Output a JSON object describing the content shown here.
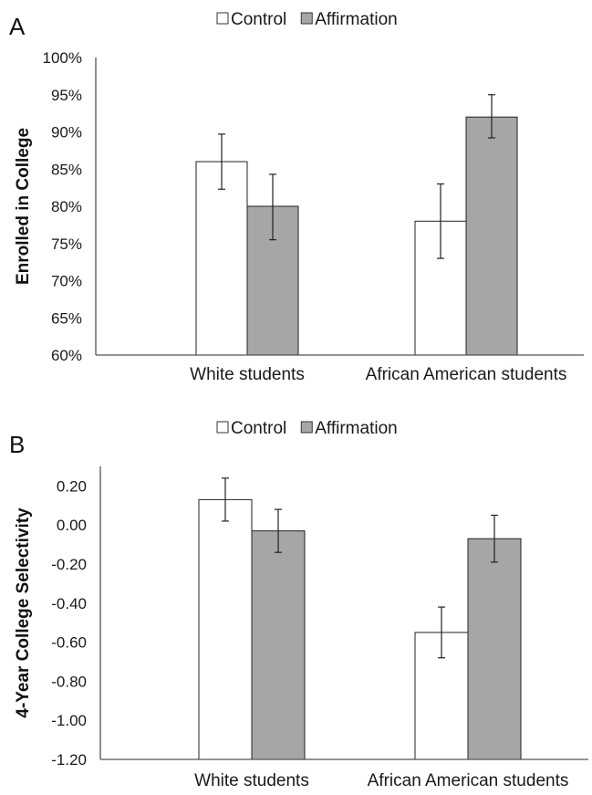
{
  "chart_data": [
    {
      "type": "bar",
      "panel_label": "A",
      "categories": [
        "White students",
        "African American students"
      ],
      "series": [
        {
          "name": "Control",
          "values": [
            86,
            78
          ],
          "error_low": [
            82.3,
            73
          ],
          "error_high": [
            89.7,
            83
          ],
          "color": "#ffffff"
        },
        {
          "name": "Affirmation",
          "values": [
            80,
            92
          ],
          "error_low": [
            75.5,
            89.2
          ],
          "error_high": [
            84.3,
            95
          ],
          "color": "#a6a6a6"
        }
      ],
      "ylabel": "Enrolled in College",
      "ylim": [
        60,
        100
      ],
      "yticks": [
        60,
        65,
        70,
        75,
        80,
        85,
        90,
        95,
        100
      ],
      "ytick_labels": [
        "60%",
        "65%",
        "70%",
        "75%",
        "80%",
        "85%",
        "90%",
        "95%",
        "100%"
      ],
      "legend_position": "top-center",
      "grid": false
    },
    {
      "type": "bar",
      "panel_label": "B",
      "categories": [
        "White students",
        "African American students"
      ],
      "series": [
        {
          "name": "Control",
          "values": [
            0.13,
            -0.55
          ],
          "error_low": [
            0.02,
            -0.68
          ],
          "error_high": [
            0.24,
            -0.42
          ],
          "color": "#ffffff"
        },
        {
          "name": "Affirmation",
          "values": [
            -0.03,
            -0.07
          ],
          "error_low": [
            -0.14,
            -0.19
          ],
          "error_high": [
            0.08,
            0.05
          ],
          "color": "#a6a6a6"
        }
      ],
      "ylabel": "4-Year College Selectivity",
      "ylim": [
        -1.2,
        0.3
      ],
      "yticks": [
        -1.2,
        -1.0,
        -0.8,
        -0.6,
        -0.4,
        -0.2,
        0.0,
        0.2
      ],
      "ytick_labels": [
        "-1.20",
        "-1.00",
        "-0.80",
        "-0.60",
        "-0.40",
        "-0.20",
        "0.00",
        "0.20"
      ],
      "legend_position": "top-center",
      "grid": false
    }
  ]
}
